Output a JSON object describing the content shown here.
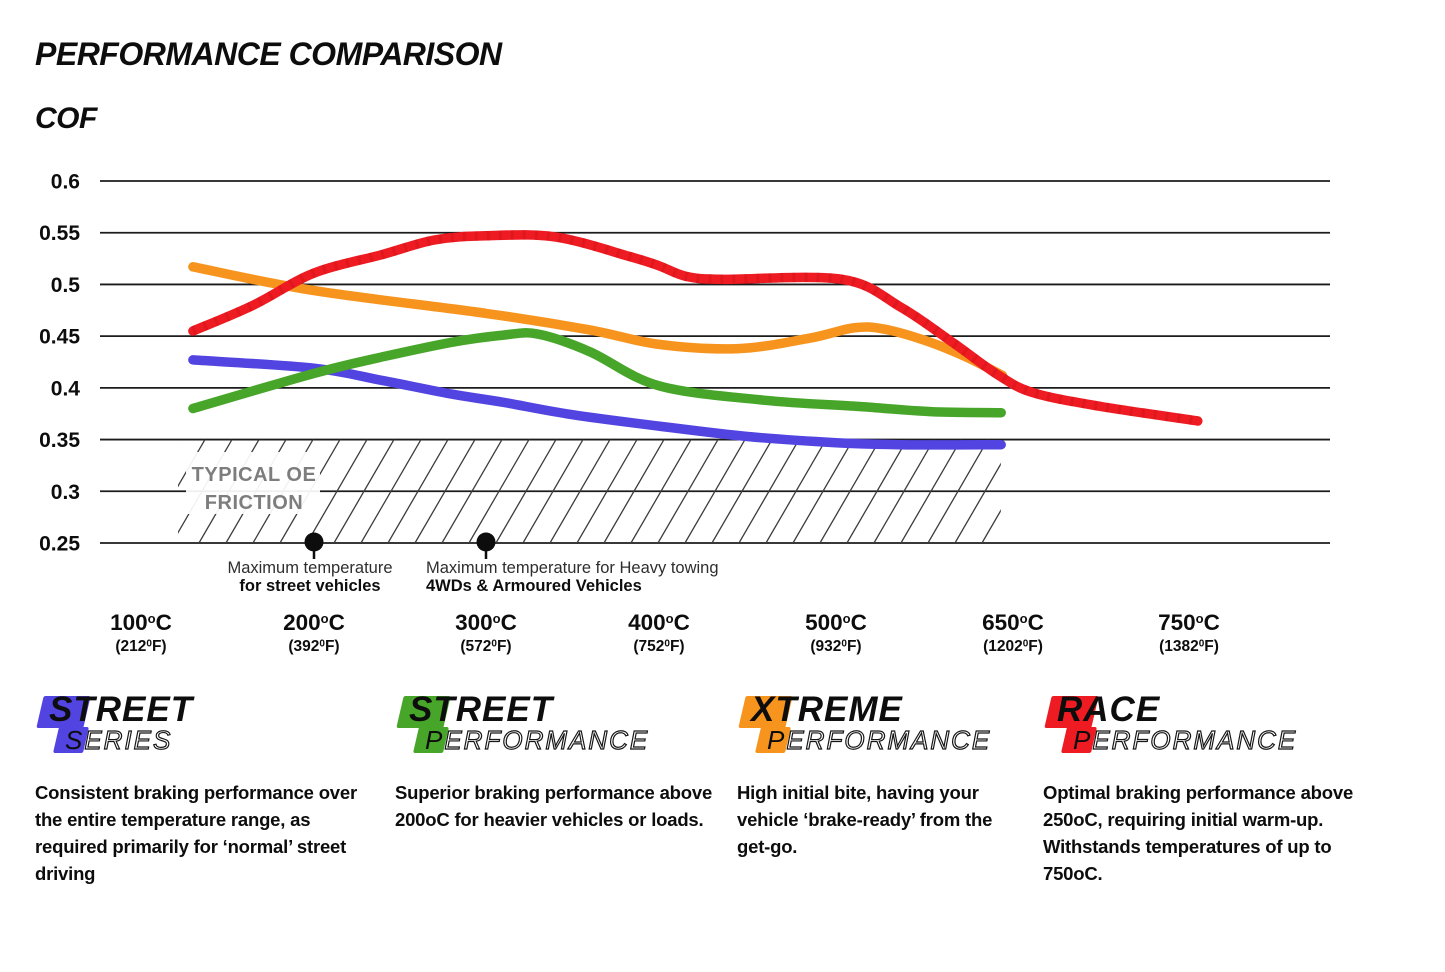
{
  "header": {
    "title": "PERFORMANCE COMPARISON",
    "y_axis_title": "COF"
  },
  "chart_data": {
    "type": "line",
    "title": "PERFORMANCE COMPARISON",
    "ylabel": "COF",
    "xlabel": "",
    "ylim": [
      0.25,
      0.6
    ],
    "grid": "horizontal",
    "legend_position": "bottom",
    "yticks": [
      "0.6",
      "0.55",
      "0.5",
      "0.45",
      "0.4",
      "0.35",
      "0.3",
      "0.25"
    ],
    "xticks": [
      {
        "celsius": "100",
        "fahrenheit": "212"
      },
      {
        "celsius": "200",
        "fahrenheit": "392"
      },
      {
        "celsius": "300",
        "fahrenheit": "572"
      },
      {
        "celsius": "400",
        "fahrenheit": "752"
      },
      {
        "celsius": "500",
        "fahrenheit": "932"
      },
      {
        "celsius": "650",
        "fahrenheit": "1202"
      },
      {
        "celsius": "750",
        "fahrenheit": "1382"
      }
    ],
    "oe_band": {
      "label_line1": "TYPICAL OE",
      "label_line2": "FRICTION",
      "cof_min": 0.25,
      "cof_max": 0.35,
      "temp_start": 126,
      "temp_end": 638
    },
    "annotations": [
      {
        "temp": 200,
        "cof": 0.25,
        "line1": "Maximum temperature",
        "line2": "for street vehicles",
        "align": "center"
      },
      {
        "temp": 300,
        "cof": 0.25,
        "line1": "Maximum temperature for Heavy towing",
        "line2": "4WDs & Armoured Vehicles",
        "align": "left"
      }
    ],
    "series": [
      {
        "name": "Street Series",
        "color": "#5244e1",
        "points": [
          [
            130,
            0.427
          ],
          [
            200,
            0.419
          ],
          [
            240,
            0.407
          ],
          [
            280,
            0.394
          ],
          [
            310,
            0.386
          ],
          [
            350,
            0.374
          ],
          [
            400,
            0.363
          ],
          [
            450,
            0.353
          ],
          [
            500,
            0.347
          ],
          [
            555,
            0.345
          ],
          [
            640,
            0.345
          ]
        ]
      },
      {
        "name": "Street Performance",
        "color": "#47a629",
        "points": [
          [
            130,
            0.38
          ],
          [
            200,
            0.414
          ],
          [
            240,
            0.43
          ],
          [
            280,
            0.444
          ],
          [
            310,
            0.451
          ],
          [
            330,
            0.452
          ],
          [
            360,
            0.435
          ],
          [
            400,
            0.402
          ],
          [
            460,
            0.388
          ],
          [
            520,
            0.382
          ],
          [
            580,
            0.377
          ],
          [
            640,
            0.376
          ]
        ]
      },
      {
        "name": "Xtreme Performance",
        "color": "#f7941e",
        "points": [
          [
            130,
            0.517
          ],
          [
            200,
            0.494
          ],
          [
            300,
            0.472
          ],
          [
            360,
            0.456
          ],
          [
            400,
            0.442
          ],
          [
            445,
            0.438
          ],
          [
            485,
            0.448
          ],
          [
            515,
            0.458
          ],
          [
            540,
            0.457
          ],
          [
            575,
            0.446
          ],
          [
            610,
            0.43
          ],
          [
            641,
            0.412
          ]
        ]
      },
      {
        "name": "Race Performance",
        "color": "#ee1b22",
        "points": [
          [
            130,
            0.455
          ],
          [
            165,
            0.48
          ],
          [
            200,
            0.511
          ],
          [
            240,
            0.529
          ],
          [
            270,
            0.543
          ],
          [
            300,
            0.547
          ],
          [
            340,
            0.546
          ],
          [
            383,
            0.527
          ],
          [
            400,
            0.518
          ],
          [
            415,
            0.508
          ],
          [
            435,
            0.505
          ],
          [
            505,
            0.505
          ],
          [
            555,
            0.478
          ],
          [
            600,
            0.443
          ],
          [
            638,
            0.412
          ],
          [
            662,
            0.395
          ],
          [
            700,
            0.382
          ],
          [
            755,
            0.368
          ]
        ]
      }
    ]
  },
  "legend": {
    "items": [
      {
        "line1_initial": "S",
        "line1_rest": "TREET",
        "line2_initial": "S",
        "line2_rest": "ERIES",
        "color": "#5244e1",
        "description": "Consistent braking performance over the entire temperature range, as required primarily for ‘normal’ street driving"
      },
      {
        "line1_initial": "S",
        "line1_rest": "TREET",
        "line2_initial": "P",
        "line2_rest": "ERFORMANCE",
        "color": "#47a629",
        "description": "Superior braking performance above 200oC for heavier vehicles or loads."
      },
      {
        "line1_initial": "X",
        "line1_rest": "TREME",
        "line2_initial": "P",
        "line2_rest": "ERFORMANCE",
        "color": "#f7941e",
        "description": "High initial bite, having your vehicle ‘brake-ready’ from the get-go."
      },
      {
        "line1_initial": "R",
        "line1_rest": "ACE",
        "line2_initial": "P",
        "line2_rest": "ERFORMANCE",
        "color": "#ee1b22",
        "description": "Optimal braking performance above 250oC, requiring initial warm-up. Withstands temperatures of up to 750oC."
      }
    ]
  }
}
